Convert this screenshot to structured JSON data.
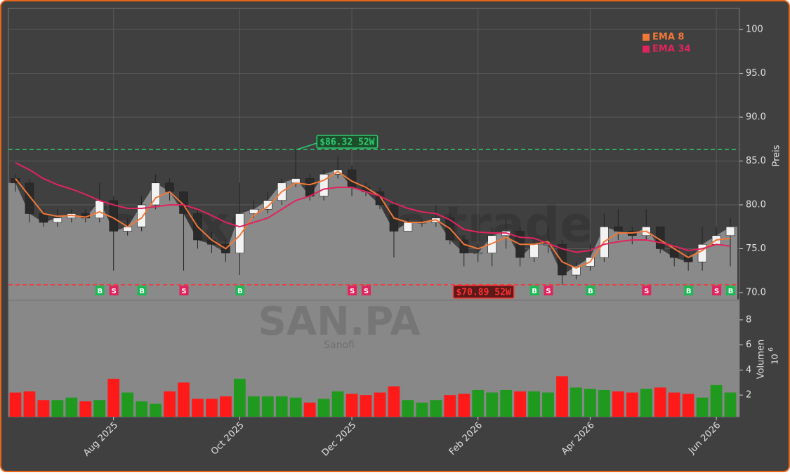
{
  "chart_data": {
    "type": "candlestick",
    "watermark": "forexsignals.trade",
    "symbol": "SAN.PA",
    "company": "Sanofi",
    "categories": [
      null,
      null,
      null,
      null,
      null,
      null,
      null,
      "Aug 2025",
      null,
      null,
      null,
      null,
      null,
      null,
      null,
      null,
      "Oct 2025",
      null,
      null,
      null,
      null,
      null,
      null,
      null,
      "Dec 2025",
      null,
      null,
      null,
      null,
      null,
      null,
      null,
      null,
      "Feb 2026",
      null,
      null,
      null,
      null,
      null,
      null,
      null,
      "Apr 2026",
      null,
      null,
      null,
      null,
      null,
      null,
      null,
      null,
      "Jun 2026",
      null
    ],
    "open": [
      83,
      82.5,
      79,
      78,
      78.5,
      79,
      78.5,
      80.5,
      77,
      77.5,
      80,
      82.5,
      81.5,
      79,
      76,
      75.5,
      74.5,
      79,
      79.5,
      80.5,
      82.5,
      83,
      81,
      83.5,
      84,
      82,
      81.5,
      80,
      77,
      78,
      78,
      78.5,
      76,
      74.5,
      74.5,
      76.5,
      77,
      74,
      75.5,
      75.5,
      72,
      73,
      74,
      77.5,
      77,
      76.5,
      77.5,
      75,
      74,
      73.5,
      75.5,
      76.5
    ],
    "high": [
      83.5,
      83,
      79.5,
      79.5,
      79.5,
      79.5,
      82.5,
      81,
      78.5,
      81,
      83.5,
      83,
      81.5,
      79.5,
      77,
      76,
      82.5,
      80.5,
      81.5,
      83,
      86.32,
      83.5,
      84,
      85.5,
      84.5,
      82.5,
      82,
      80.5,
      78.5,
      78.5,
      80,
      79,
      76.5,
      75.5,
      77.5,
      78.5,
      77.5,
      76,
      77.5,
      76,
      73.5,
      75.5,
      79,
      79.5,
      77.5,
      79.5,
      77.5,
      75.5,
      74.5,
      77.5,
      77.5,
      78.5
    ],
    "low": [
      81.5,
      78,
      77.5,
      77.5,
      78,
      78,
      78,
      72.5,
      76.5,
      77,
      79.5,
      80.5,
      72.5,
      75,
      74.5,
      73.5,
      72,
      78.5,
      79,
      80,
      82,
      80.5,
      80.5,
      83,
      81,
      81,
      79.5,
      74,
      77,
      77.5,
      77.5,
      75.5,
      73,
      73.5,
      73,
      75,
      73,
      73.5,
      74.5,
      70.89,
      71.5,
      72.5,
      73.5,
      76,
      75.5,
      76,
      74.5,
      73,
      72.5,
      72.5,
      75.5,
      73
    ],
    "close": [
      82.5,
      79,
      78,
      78.5,
      79,
      78.5,
      80.5,
      77,
      77.5,
      80,
      82.5,
      81.5,
      79,
      76,
      75.5,
      74.5,
      79,
      79.5,
      80.5,
      82.5,
      83,
      81,
      83.5,
      84,
      82,
      81.5,
      80,
      77,
      78,
      78,
      78.5,
      76,
      74.5,
      74.5,
      76.5,
      77,
      74,
      75.5,
      75.5,
      72,
      73,
      74,
      77.5,
      77,
      76.5,
      77.5,
      75,
      74,
      73.5,
      75.5,
      76.5,
      77.5
    ],
    "series": [
      {
        "name": "EMA 8",
        "color": "#f07838",
        "values": [
          83,
          81,
          79,
          78.7,
          78.8,
          78.6,
          79.2,
          78.5,
          77.5,
          78.5,
          80.8,
          81.5,
          80,
          77.5,
          76,
          75,
          76.5,
          78.8,
          79.8,
          81.5,
          82.5,
          82.3,
          82.8,
          83.8,
          82.7,
          82,
          81,
          78.5,
          78,
          78,
          78.3,
          77.3,
          75.5,
          75,
          75.6,
          76.3,
          75.5,
          75.5,
          75.8,
          73.5,
          72.8,
          73.5,
          75.8,
          76.8,
          76.8,
          77,
          76,
          75,
          74,
          74.8,
          76,
          76.2
        ]
      },
      {
        "name": "EMA 34",
        "color": "#e0245e",
        "values": [
          84.8,
          84,
          83,
          82.3,
          81.8,
          81.2,
          80.5,
          80,
          79.6,
          79.6,
          79.8,
          80,
          80,
          79.5,
          78.8,
          78,
          77.5,
          78,
          78.5,
          79.5,
          80.5,
          81,
          81.8,
          82,
          82,
          81.5,
          81,
          80.2,
          79.6,
          79.2,
          79,
          78.3,
          77.2,
          76.9,
          76.8,
          76.8,
          76.3,
          76.2,
          75.6,
          75,
          74.6,
          74.8,
          75.5,
          75.8,
          76,
          76,
          75.7,
          75.3,
          74.8,
          75,
          75.5,
          75.3
        ]
      }
    ],
    "volume": {
      "values": [
        2.2,
        2.3,
        1.6,
        1.6,
        1.8,
        1.5,
        1.6,
        3.3,
        2.2,
        1.5,
        1.3,
        2.3,
        3.0,
        1.7,
        1.7,
        1.9,
        3.3,
        1.9,
        1.9,
        1.9,
        1.8,
        1.4,
        1.7,
        2.3,
        2.1,
        2.0,
        2.2,
        2.7,
        1.6,
        1.4,
        1.6,
        2.0,
        2.1,
        2.4,
        2.2,
        2.4,
        2.3,
        2.3,
        2.2,
        3.5,
        2.6,
        2.5,
        2.4,
        2.3,
        2.2,
        2.5,
        2.6,
        2.2,
        2.1,
        1.8,
        2.8,
        2.2
      ],
      "up_color": "#1f9a1f",
      "down_color": "#ff1a1a"
    },
    "signals": [
      null,
      null,
      null,
      null,
      null,
      null,
      "B",
      "S",
      null,
      "B",
      null,
      null,
      "S",
      null,
      null,
      null,
      "B",
      null,
      null,
      null,
      null,
      null,
      null,
      null,
      "S",
      "S",
      null,
      null,
      null,
      null,
      null,
      null,
      null,
      null,
      null,
      null,
      null,
      "B",
      "S",
      null,
      null,
      "B",
      null,
      null,
      null,
      "S",
      null,
      null,
      "B",
      null,
      "S",
      "B"
    ],
    "hlines": [
      {
        "value": 86.32,
        "label": "$86.32 52W",
        "color": "#2ecc71"
      },
      {
        "value": 70.89,
        "label": "$70.89 52W",
        "color": "#ff3030"
      }
    ],
    "ylim": [
      69.2,
      102.4
    ],
    "yticks": [
      {
        "value": 70,
        "label": "70.0"
      },
      {
        "value": 75,
        "label": "75.0"
      },
      {
        "value": 80,
        "label": "80.0"
      },
      {
        "value": 85,
        "label": "85.0"
      },
      {
        "value": 90,
        "label": "90.0"
      },
      {
        "value": 95,
        "label": "95.0"
      },
      100
    ],
    "y_label": "Preis",
    "y2lim": [
      0.27,
      9.56
    ],
    "y2ticks": [
      2,
      4,
      6,
      8
    ],
    "y2_label": "Volumen",
    "y2_multiplier": "10",
    "y2_exponent": "6",
    "grid": true,
    "legend": "upper right"
  }
}
